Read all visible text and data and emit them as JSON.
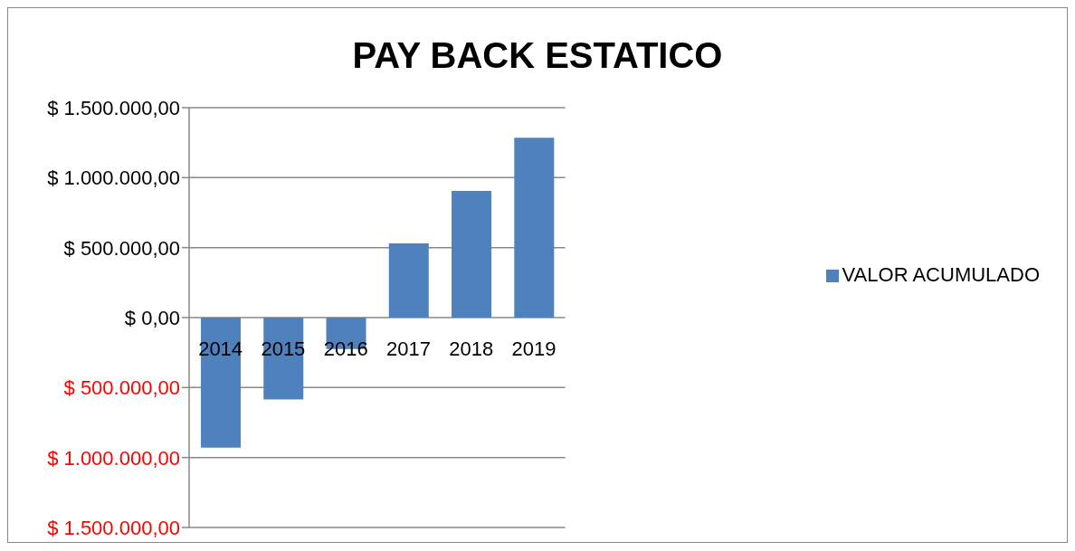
{
  "chart_data": {
    "type": "bar",
    "title": "PAY BACK ESTATICO",
    "categories": [
      "2014",
      "2015",
      "2016",
      "2017",
      "2018",
      "2019"
    ],
    "series": [
      {
        "name": "VALOR ACUMULADO",
        "color": "#4f81bd",
        "values": [
          -930000,
          -585000,
          -225000,
          530000,
          905000,
          1285000
        ]
      }
    ],
    "ylim": [
      -1500000,
      1500000
    ],
    "yticks": [
      {
        "value": -1500000,
        "label": "$ 1.500.000,00"
      },
      {
        "value": -1000000,
        "label": "$ 1.000.000,00"
      },
      {
        "value": -500000,
        "label": "$ 500.000,00"
      },
      {
        "value": 0,
        "label": "$ 0,00"
      },
      {
        "value": 500000,
        "label": "$ 500.000,00"
      },
      {
        "value": 1000000,
        "label": "$ 1.000.000,00"
      },
      {
        "value": 1500000,
        "label": "$ 1.500.000,00"
      }
    ],
    "grid": "y",
    "legend": "right"
  }
}
